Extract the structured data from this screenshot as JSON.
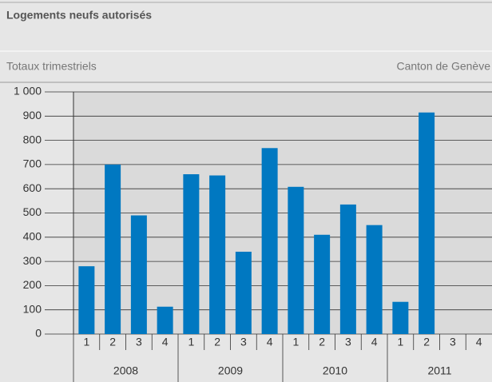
{
  "chart_data": {
    "type": "bar",
    "title": "Logements neufs autorisés",
    "subtitle": "Totaux trimestriels",
    "region": "Canton de Genève",
    "categories": [
      "1",
      "2",
      "3",
      "4",
      "1",
      "2",
      "3",
      "4",
      "1",
      "2",
      "3",
      "4",
      "1",
      "2",
      "3",
      "4"
    ],
    "years": [
      "2008",
      "2009",
      "2010",
      "2011"
    ],
    "values": [
      280,
      700,
      490,
      113,
      660,
      655,
      340,
      768,
      608,
      410,
      535,
      450,
      133,
      915,
      null,
      null
    ],
    "color": "#0078c1",
    "ylim": [
      0,
      1000
    ],
    "yticks": [
      0,
      100,
      200,
      300,
      400,
      500,
      600,
      700,
      800,
      900,
      {
        "value": 1000,
        "label": "1 000"
      }
    ],
    "grid": true
  }
}
